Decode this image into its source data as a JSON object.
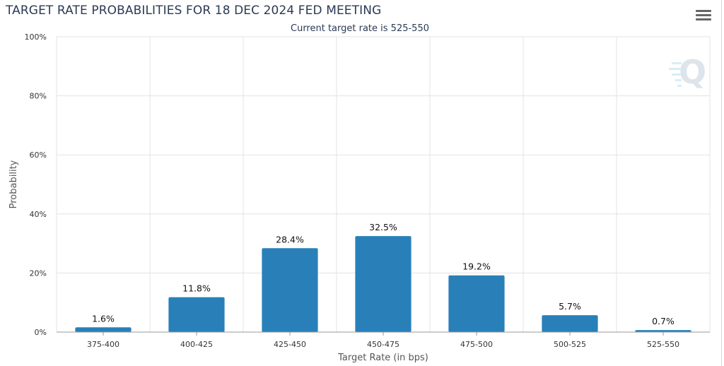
{
  "header": {
    "title": "TARGET RATE PROBABILITIES FOR 18 DEC 2024 FED MEETING",
    "subtitle": "Current target rate is 525-550"
  },
  "icons": {
    "menu": "hamburger-menu-icon",
    "watermark": "q-logo-watermark"
  },
  "colors": {
    "bar": "#2980b9",
    "title": "#2b3a55",
    "grid": "#e3e3e3"
  },
  "chart_data": {
    "type": "bar",
    "title": "TARGET RATE PROBABILITIES FOR 18 DEC 2024 FED MEETING",
    "subtitle": "Current target rate is 525-550",
    "xlabel": "Target Rate (in bps)",
    "ylabel": "Probability",
    "categories": [
      "375-400",
      "400-425",
      "425-450",
      "450-475",
      "475-500",
      "500-525",
      "525-550"
    ],
    "values": [
      1.6,
      11.8,
      28.4,
      32.5,
      19.2,
      5.7,
      0.7
    ],
    "value_labels": [
      "1.6%",
      "11.8%",
      "28.4%",
      "32.5%",
      "19.2%",
      "5.7%",
      "0.7%"
    ],
    "ylim": [
      0,
      100
    ],
    "yticks": [
      0,
      20,
      40,
      60,
      80,
      100
    ],
    "ytick_labels": [
      "0%",
      "20%",
      "40%",
      "60%",
      "80%",
      "100%"
    ],
    "grid": true,
    "legend": "none"
  }
}
